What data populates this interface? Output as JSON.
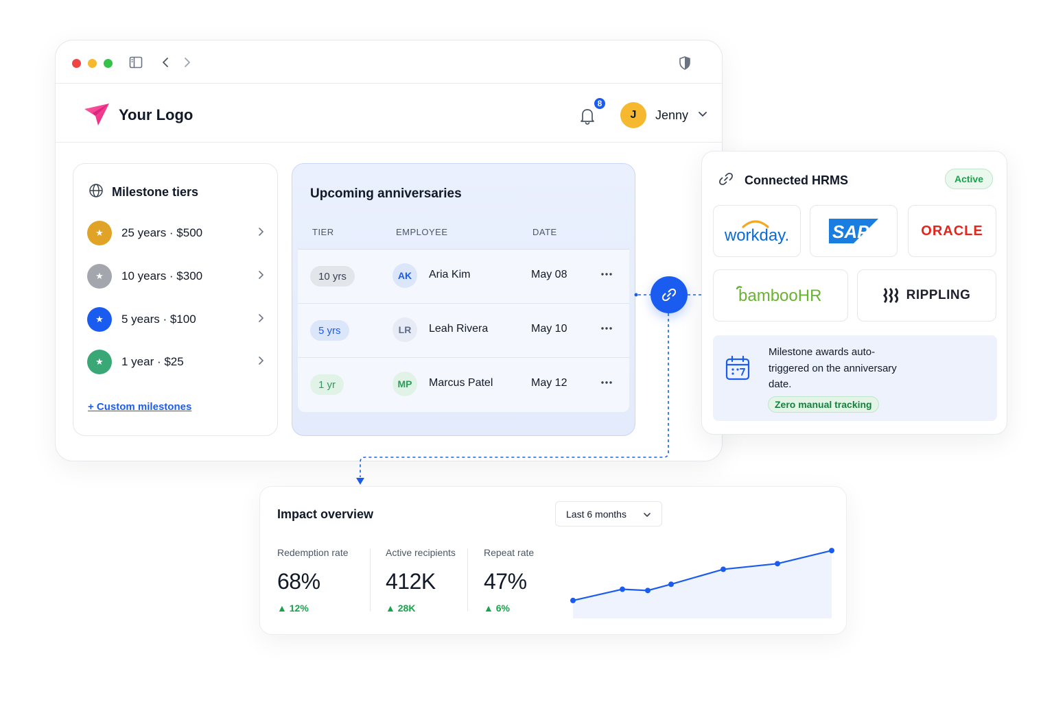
{
  "brand": {
    "logo_text": "Your Logo",
    "accent": "#1b5cf0"
  },
  "header": {
    "notifications_count": "8",
    "user_initial": "J",
    "user_name": "Jenny"
  },
  "milestone_tiers": {
    "title": "Milestone tiers",
    "items": [
      {
        "label": "25 years · $500",
        "color": "#e0a326"
      },
      {
        "label": "10 years · $300",
        "color": "#a3a6ad"
      },
      {
        "label": "5 years · $100",
        "color": "#1b5cf0"
      },
      {
        "label": "1 year · $25",
        "color": "#3aa876"
      }
    ],
    "custom_link": "+ Custom milestones"
  },
  "anniversaries": {
    "title": "Upcoming anniversaries",
    "columns": [
      "TIER",
      "EMPLOYEE",
      "DATE"
    ],
    "rows": [
      {
        "tier": "10 yrs",
        "initials": "AK",
        "name": "Aria Kim",
        "date": "May 08"
      },
      {
        "tier": "5 yrs",
        "initials": "LR",
        "name": "Leah Rivera",
        "date": "May 10"
      },
      {
        "tier": "1 yr",
        "initials": "MP",
        "name": "Marcus Patel",
        "date": "May 12"
      }
    ]
  },
  "hrms": {
    "title": "Connected HRMS",
    "status": "Active",
    "providers": [
      "workday.",
      "SAP",
      "ORACLE",
      "bambooHR",
      "RIPPLING"
    ],
    "info_text": "Milestone awards auto-triggered on the anniversary date.",
    "info_pill": "Zero manual tracking"
  },
  "impact": {
    "title": "Impact overview",
    "range": "Last 6 months",
    "metrics": [
      {
        "label": "Redemption rate",
        "value": "68%",
        "delta": "▲ 12%"
      },
      {
        "label": "Active recipients",
        "value": "412K",
        "delta": "▲ 28K"
      },
      {
        "label": "Repeat rate",
        "value": "47%",
        "delta": "▲ 6%"
      }
    ],
    "trend": [
      10,
      28,
      26,
      36,
      60,
      69,
      90
    ]
  }
}
